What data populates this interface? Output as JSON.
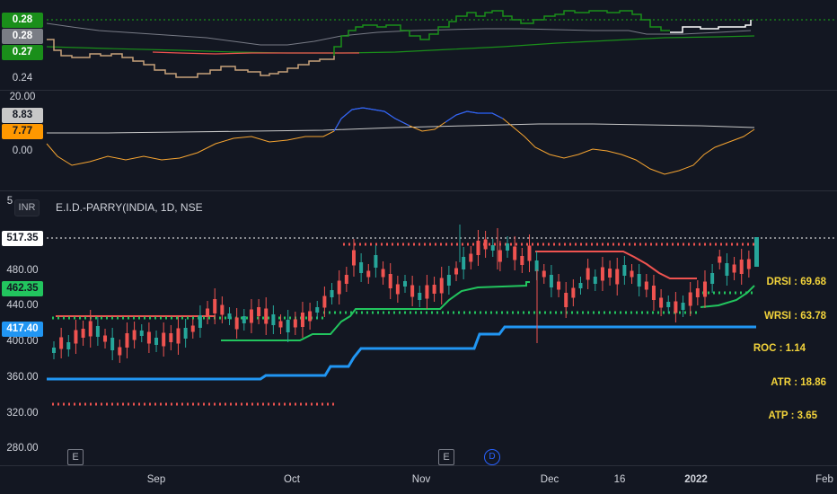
{
  "symbol": {
    "title": "E.I.D.-PARRY(INDIA, 1D, NSE",
    "currency": "INR"
  },
  "pane1": {
    "axis_ticks": [
      "0.24"
    ],
    "tags": [
      {
        "text": "0.28",
        "bg": "#1a8f1a",
        "color": "#ffffff"
      },
      {
        "text": "0.28",
        "bg": "#7a7d85",
        "color": "#ffffff"
      },
      {
        "text": "0.27",
        "bg": "#1a8f1a",
        "color": "#ffffff"
      }
    ]
  },
  "pane2": {
    "axis_ticks": [
      "20.00",
      "0.00"
    ],
    "tags": [
      {
        "text": "8.83",
        "bg": "#c8c8c8",
        "color": "#131722"
      },
      {
        "text": "7.77",
        "bg": "#ff9800",
        "color": "#131722"
      }
    ]
  },
  "pane3": {
    "axis_ticks": [
      "5",
      "480.00",
      "440.00",
      "400.00",
      "360.00",
      "320.00",
      "280.00"
    ],
    "tags": [
      {
        "text": "517.35",
        "bg": "#ffffff",
        "color": "#131722"
      },
      {
        "text": "462.35",
        "bg": "#22c55e",
        "color": "#131722"
      },
      {
        "text": "417.40",
        "bg": "#2196f3",
        "color": "#ffffff"
      }
    ]
  },
  "time_axis": [
    "Sep",
    "Oct",
    "Nov",
    "Dec",
    "16",
    "2022",
    "Feb"
  ],
  "indicators": [
    "DRSI : 69.68",
    "WRSI : 63.78",
    "ROC  : 1.14",
    "ATR : 18.86",
    "ATP : 3.65"
  ],
  "events": [
    "E",
    "E",
    "D"
  ],
  "colors": {
    "background": "#131722",
    "up_candle": "#26a69a",
    "down_candle": "#ef5350",
    "blue_line": "#2196f3",
    "green_line": "#22c55e",
    "red_line": "#ef5350",
    "indicator_text": "#f2d33b"
  }
}
